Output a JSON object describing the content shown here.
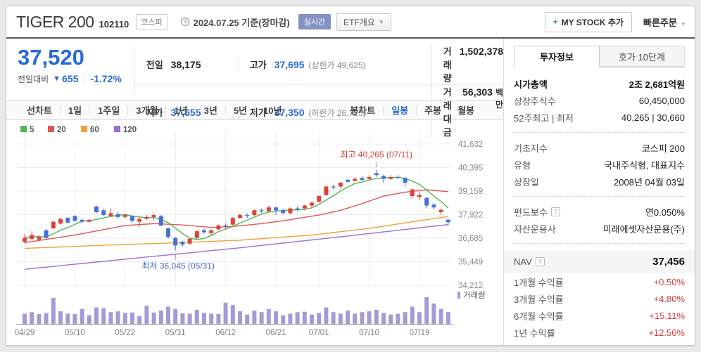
{
  "header": {
    "title": "TIGER 200",
    "code": "102110",
    "market": "코스피",
    "date_info": "2024.07.25 기준(장마감)",
    "realtime_badge": "실시간",
    "etf_overview": "ETF개요",
    "my_stock_plus": "+",
    "my_stock_label": "MY STOCK 추가",
    "quick_order": "빠른주문"
  },
  "price": {
    "current": "37,520",
    "change_label": "전일대비",
    "change_dir": "▼",
    "change": "655",
    "change_pct": "-1.72%"
  },
  "summary": {
    "prev_label": "전일",
    "prev": "38,175",
    "high_label": "고가",
    "high": "37,695",
    "high_limit": "(상한가 49,625)",
    "volume_label": "거래량",
    "volume": "1,502,378",
    "open_label": "시가",
    "open": "37,655",
    "low_label": "저가",
    "low": "37,350",
    "low_limit": "(하한가 26,725)",
    "amount_label": "거래대금",
    "amount": "56,303",
    "amount_unit": "백만"
  },
  "chart_tabs": {
    "line_group": [
      {
        "key": "line-chart",
        "label": "선차트"
      },
      {
        "key": "1d",
        "label": "1일"
      },
      {
        "key": "1w",
        "label": "1주일"
      },
      {
        "key": "3m",
        "label": "3개월"
      },
      {
        "key": "1y",
        "label": "1년"
      },
      {
        "key": "3y",
        "label": "3년"
      },
      {
        "key": "5y",
        "label": "5년"
      },
      {
        "key": "10y",
        "label": "10년"
      }
    ],
    "candle_group": [
      {
        "key": "candle-chart",
        "label": "봉차트"
      },
      {
        "key": "daily",
        "label": "일봉"
      },
      {
        "key": "weekly",
        "label": "주봉"
      },
      {
        "key": "monthly",
        "label": "월봉"
      }
    ],
    "active_key": "daily"
  },
  "chart_data": {
    "type": "candlestick",
    "legend": [
      {
        "label": "5",
        "color": "#53b253"
      },
      {
        "label": "20",
        "color": "#e15454"
      },
      {
        "label": "60",
        "color": "#f0a13c"
      },
      {
        "label": "120",
        "color": "#9a6fcf"
      }
    ],
    "up_color": "#d9453c",
    "down_color": "#4a6fd4",
    "volume_color": "#a49bd6",
    "volume_legend": "거래량",
    "y_ticks": [
      "41,632",
      "40,395",
      "39,159",
      "37,922",
      "36,685",
      "35,449",
      "34,212"
    ],
    "y_tick_values": [
      41632,
      40395,
      39159,
      37922,
      36685,
      35449,
      34212
    ],
    "x_ticks": [
      {
        "label": "04/29",
        "index": 0
      },
      {
        "label": "05/10",
        "index": 7
      },
      {
        "label": "05/22",
        "index": 14
      },
      {
        "label": "05/31",
        "index": 21
      },
      {
        "label": "06/12",
        "index": 28
      },
      {
        "label": "06/21",
        "index": 35
      },
      {
        "label": "07/01",
        "index": 41
      },
      {
        "label": "07/10",
        "index": 48
      },
      {
        "label": "07/19",
        "index": 55
      }
    ],
    "candles_format": [
      "date",
      "open",
      "high",
      "low",
      "close",
      "volume_k"
    ],
    "candles": [
      [
        "04/29",
        36500,
        36900,
        36400,
        36700,
        1300
      ],
      [
        "04/30",
        36650,
        37050,
        36600,
        36850,
        1500
      ],
      [
        "05/02",
        36600,
        36850,
        36500,
        36750,
        1250
      ],
      [
        "05/03",
        37100,
        37150,
        36650,
        36700,
        1400
      ],
      [
        "05/07",
        37200,
        37600,
        37150,
        37550,
        3300
      ],
      [
        "05/08",
        37450,
        37750,
        37400,
        37700,
        1600
      ],
      [
        "05/09",
        37750,
        37800,
        37450,
        37500,
        1300
      ],
      [
        "05/10",
        37850,
        37900,
        37550,
        37600,
        1250
      ],
      [
        "05/13",
        37650,
        37750,
        37450,
        37550,
        1900
      ],
      [
        "05/14",
        37550,
        37700,
        37500,
        37650,
        1100
      ],
      [
        "05/16",
        38350,
        38400,
        38000,
        38050,
        2100
      ],
      [
        "05/17",
        38150,
        38250,
        37850,
        37900,
        2000
      ],
      [
        "05/20",
        37850,
        38250,
        37800,
        38000,
        1500
      ],
      [
        "05/21",
        37950,
        38050,
        37700,
        37800,
        1600
      ],
      [
        "05/22",
        37800,
        37950,
        37700,
        37900,
        1400
      ],
      [
        "05/23",
        37850,
        37900,
        37500,
        37600,
        1450
      ],
      [
        "05/24",
        37550,
        37800,
        37300,
        37700,
        1000
      ],
      [
        "05/27",
        37700,
        37900,
        37650,
        37800,
        2300
      ],
      [
        "05/28",
        37800,
        38000,
        37600,
        37900,
        1450
      ],
      [
        "05/29",
        37850,
        37900,
        37300,
        37350,
        1700
      ],
      [
        "05/30",
        37200,
        37250,
        36650,
        36750,
        2200
      ],
      [
        "05/31",
        36700,
        36750,
        36045,
        36300,
        1900
      ],
      [
        "06/03",
        36500,
        36550,
        36250,
        36350,
        1350
      ],
      [
        "06/04",
        36400,
        36700,
        36350,
        36650,
        1300
      ],
      [
        "06/05",
        36700,
        37100,
        36650,
        37050,
        1800
      ],
      [
        "06/07",
        37100,
        37200,
        36900,
        37000,
        1400
      ],
      [
        "06/10",
        36950,
        37150,
        36850,
        37100,
        1300
      ],
      [
        "06/11",
        37150,
        37400,
        37100,
        37350,
        1250
      ],
      [
        "06/12",
        37350,
        37450,
        37200,
        37300,
        2700
      ],
      [
        "06/13",
        37400,
        37800,
        37350,
        37750,
        2400
      ],
      [
        "06/14",
        37750,
        38000,
        37700,
        37900,
        1600
      ],
      [
        "06/17",
        37900,
        38000,
        37750,
        37850,
        1200
      ],
      [
        "06/18",
        37900,
        38200,
        37850,
        38150,
        1700
      ],
      [
        "06/19",
        38150,
        38250,
        38000,
        38100,
        1500
      ],
      [
        "06/20",
        38100,
        38400,
        38050,
        38300,
        1900
      ],
      [
        "06/21",
        38300,
        38350,
        37900,
        38150,
        1600
      ],
      [
        "06/24",
        38150,
        38250,
        37950,
        38000,
        1100
      ],
      [
        "06/25",
        38000,
        38300,
        37950,
        38250,
        1300
      ],
      [
        "06/26",
        38250,
        38350,
        38100,
        38200,
        1500
      ],
      [
        "06/27",
        38250,
        38450,
        38150,
        38400,
        1550
      ],
      [
        "06/28",
        38400,
        38600,
        38300,
        38550,
        1200
      ],
      [
        "07/01",
        38600,
        38950,
        38550,
        38900,
        1400
      ],
      [
        "07/02",
        38950,
        39450,
        38900,
        39400,
        2100
      ],
      [
        "07/03",
        39400,
        39500,
        39250,
        39350,
        1500
      ],
      [
        "07/04",
        39400,
        39650,
        39300,
        39600,
        1300
      ],
      [
        "07/05",
        39750,
        39800,
        39600,
        39650,
        1700
      ],
      [
        "07/08",
        39700,
        39900,
        39650,
        39800,
        1300
      ],
      [
        "07/09",
        39850,
        39950,
        39700,
        39750,
        1500
      ],
      [
        "07/10",
        39800,
        40000,
        39750,
        39900,
        1600
      ],
      [
        "07/11",
        40100,
        40265,
        39900,
        40000,
        1800
      ],
      [
        "07/12",
        39950,
        40050,
        39600,
        39800,
        1400
      ],
      [
        "07/15",
        39800,
        40000,
        39750,
        39900,
        1200
      ],
      [
        "07/16",
        39900,
        40000,
        39800,
        39850,
        1300
      ],
      [
        "07/17",
        39850,
        39900,
        39400,
        39600,
        1500
      ],
      [
        "07/18",
        38900,
        39300,
        38800,
        39250,
        2200
      ],
      [
        "07/19",
        38850,
        39150,
        38700,
        38950,
        1500
      ],
      [
        "07/22",
        38800,
        38850,
        38250,
        38400,
        3400
      ],
      [
        "07/23",
        38450,
        38550,
        38200,
        38300,
        2600
      ],
      [
        "07/24",
        38050,
        38250,
        37900,
        38175,
        1900
      ],
      [
        "07/25",
        37655,
        37695,
        37350,
        37520,
        1502
      ]
    ],
    "ma_anchor_lines": [
      {
        "name": "ma20",
        "color": "#e15454",
        "anchors": [
          [
            0,
            36450
          ],
          [
            7,
            36850
          ],
          [
            14,
            37350
          ],
          [
            18,
            37450
          ],
          [
            22,
            37380
          ],
          [
            26,
            37250
          ],
          [
            29,
            37300
          ],
          [
            33,
            37450
          ],
          [
            36,
            37600
          ],
          [
            41,
            37900
          ],
          [
            44,
            38150
          ],
          [
            47,
            38500
          ],
          [
            50,
            38900
          ],
          [
            53,
            39100
          ],
          [
            56,
            39230
          ],
          [
            59,
            39130
          ]
        ]
      },
      {
        "name": "ma60",
        "color": "#f0a13c",
        "anchors": [
          [
            0,
            36150
          ],
          [
            10,
            36300
          ],
          [
            20,
            36430
          ],
          [
            30,
            36580
          ],
          [
            40,
            36850
          ],
          [
            48,
            37200
          ],
          [
            54,
            37550
          ],
          [
            59,
            37820
          ]
        ]
      },
      {
        "name": "ma120",
        "color": "#9a6fcf",
        "anchors": [
          [
            0,
            35050
          ],
          [
            15,
            35620
          ],
          [
            30,
            36180
          ],
          [
            45,
            36800
          ],
          [
            59,
            37400
          ]
        ]
      }
    ],
    "ma5_color": "#53b253",
    "annotations": {
      "high": {
        "label": "최고 40,265 (07/11)",
        "arrow": "↓",
        "index": 49,
        "color": "#d9433b"
      },
      "low": {
        "label": "최저 36,045 (05/31)",
        "arrow": "↑",
        "index": 21,
        "color": "#4169c8"
      }
    }
  },
  "side": {
    "tab_invest": "투자정보",
    "tab_hoga": "호가 10단계",
    "groups": [
      {
        "key": "g1",
        "divider_before": false,
        "rows": [
          {
            "key": "market-cap",
            "label": "시가총액",
            "value": "2조 2,681억원",
            "bold": true
          },
          {
            "key": "shares-outstanding",
            "label": "상장주식수",
            "value": "60,450,000"
          },
          {
            "key": "52w-high-low",
            "label": "52주최고 | 최저",
            "value": "40,265 | 30,660"
          }
        ]
      },
      {
        "key": "g2",
        "divider_before": true,
        "rows": [
          {
            "key": "base-index",
            "label": "기초지수",
            "value": "코스피 200"
          },
          {
            "key": "fund-type",
            "label": "유형",
            "value": "국내주식형, 대표지수"
          },
          {
            "key": "listing-date",
            "label": "상장일",
            "value": "2008년 04월 03일"
          }
        ]
      },
      {
        "key": "g3",
        "divider_before": true,
        "rows": [
          {
            "key": "fund-fee",
            "label": "펀드보수",
            "help": true,
            "value": "연0.050%"
          },
          {
            "key": "asset-manager",
            "label": "자산운용사",
            "value": "미래에셋자산운용(주)"
          }
        ]
      },
      {
        "key": "nav",
        "divider_before": true,
        "nav_band": true,
        "rows": [
          {
            "key": "nav",
            "label": "NAV",
            "help": true,
            "value": "37,456",
            "bold": true
          }
        ]
      },
      {
        "key": "returns",
        "divider_before": false,
        "rows": [
          {
            "key": "return-1m",
            "label": "1개월 수익률",
            "value": "+0.50%",
            "red": true
          },
          {
            "key": "return-3m",
            "label": "3개월 수익률",
            "value": "+4.80%",
            "red": true
          },
          {
            "key": "return-6m",
            "label": "6개월 수익률",
            "value": "+15.11%",
            "red": true
          },
          {
            "key": "return-1y",
            "label": "1년 수익률",
            "value": "+12.56%",
            "red": true
          }
        ]
      }
    ]
  }
}
